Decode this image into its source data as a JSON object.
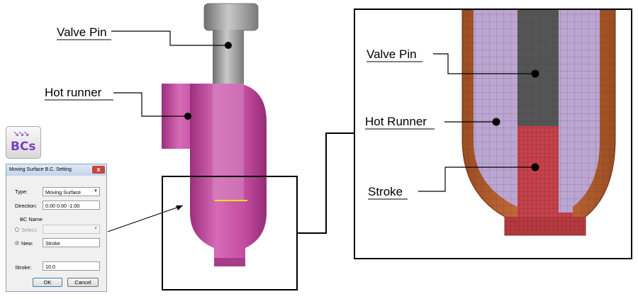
{
  "left_callouts": {
    "valve_pin": "Valve Pin",
    "hot_runner": "Hot runner"
  },
  "right_callouts": {
    "valve_pin": "Valve Pin",
    "hot_runner": "Hot Runner",
    "stroke": "Stroke"
  },
  "toolbar": {
    "bcs_icon_label": "BCs"
  },
  "dialog": {
    "title": "Moving Surface B.C. Setting",
    "close_glyph": "x",
    "type_label": "Type:",
    "type_value": "Moving Surface",
    "direction_label": "Direction:",
    "direction_value": "0.00 0.00 -1.00",
    "bc_name_label": "BC Name",
    "select_label": "Select:",
    "new_label": "New:",
    "new_value": "Stroke",
    "stroke_label": "Stroke:",
    "stroke_value": "10.0",
    "ok_label": "OK",
    "cancel_label": "Cancel"
  },
  "colors": {
    "hot_runner": "#c14a9c",
    "valve_pin": "#8e8e8e",
    "mesh_outer": "#c1632f",
    "mesh_inner": "#b8a3d0",
    "mesh_pin": "#555555",
    "mesh_stroke": "#c8414a",
    "stroke_marker": "#f0e020"
  }
}
